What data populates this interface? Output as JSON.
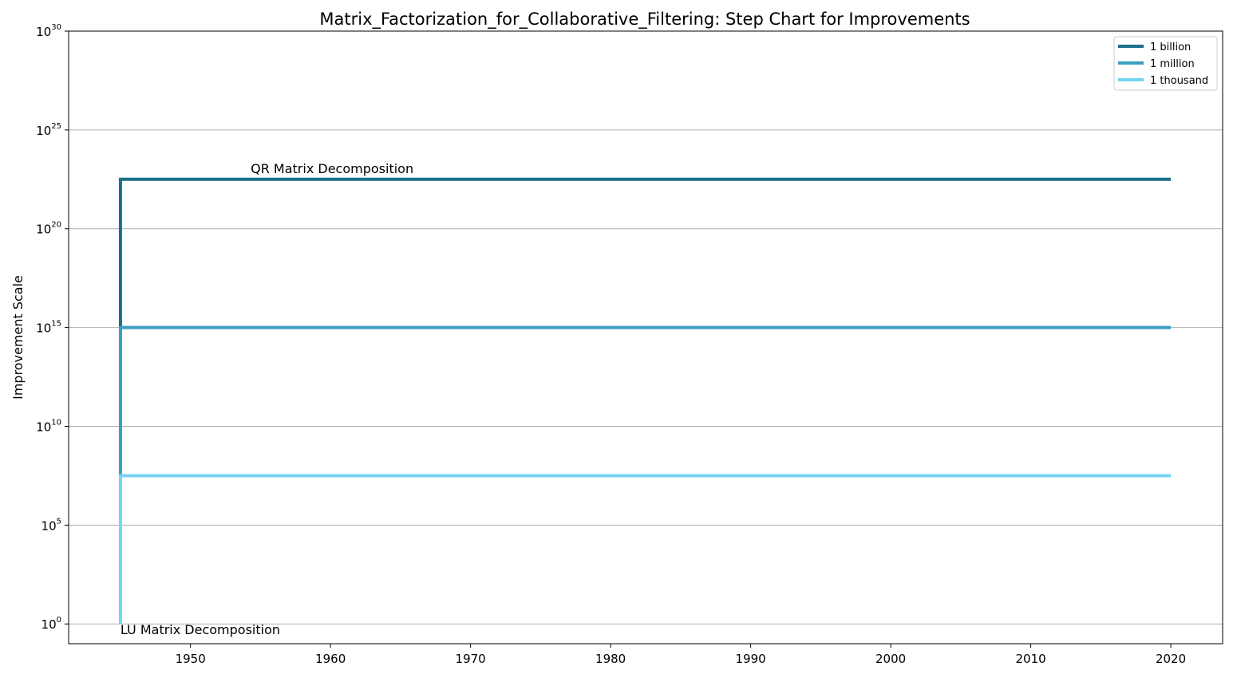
{
  "chart_data": {
    "type": "line",
    "step": true,
    "title": "Matrix_Factorization_for_Collaborative_Filtering: Step Chart for Improvements",
    "xlabel": "",
    "ylabel": "Improvement Scale",
    "xlim": [
      1941.3,
      2023.7
    ],
    "ylog": true,
    "ylim_exp": [
      -1,
      30
    ],
    "x_ticks": [
      "1950",
      "1960",
      "1970",
      "1980",
      "1990",
      "2000",
      "2010",
      "2020"
    ],
    "y_ticks": [
      {
        "base": "10",
        "exp": "0"
      },
      {
        "base": "10",
        "exp": "5"
      },
      {
        "base": "10",
        "exp": "10"
      },
      {
        "base": "10",
        "exp": "15"
      },
      {
        "base": "10",
        "exp": "20"
      },
      {
        "base": "10",
        "exp": "25"
      },
      {
        "base": "10",
        "exp": "30"
      }
    ],
    "grid": "y",
    "legend_position": "top-right",
    "series": [
      {
        "name": "1 billion",
        "color": "#1b6f8c",
        "x": [
          1945,
          1945,
          2020
        ],
        "y_exp": [
          15,
          22.5,
          22.5
        ]
      },
      {
        "name": "1 million",
        "color": "#3a9fc0",
        "x": [
          1945,
          1945,
          2020
        ],
        "y_exp": [
          7.5,
          15,
          15
        ]
      },
      {
        "name": "1 thousand",
        "color": "#76d4f2",
        "x": [
          1945,
          1945,
          2020
        ],
        "y_exp": [
          0,
          7.5,
          7.5
        ]
      }
    ],
    "annotations": [
      {
        "text": "QR Matrix Decomposition",
        "x": 1954.3,
        "y_exp": 22.5
      },
      {
        "text": "LU Matrix Decomposition",
        "x": 1945,
        "y_exp": 0
      }
    ]
  }
}
